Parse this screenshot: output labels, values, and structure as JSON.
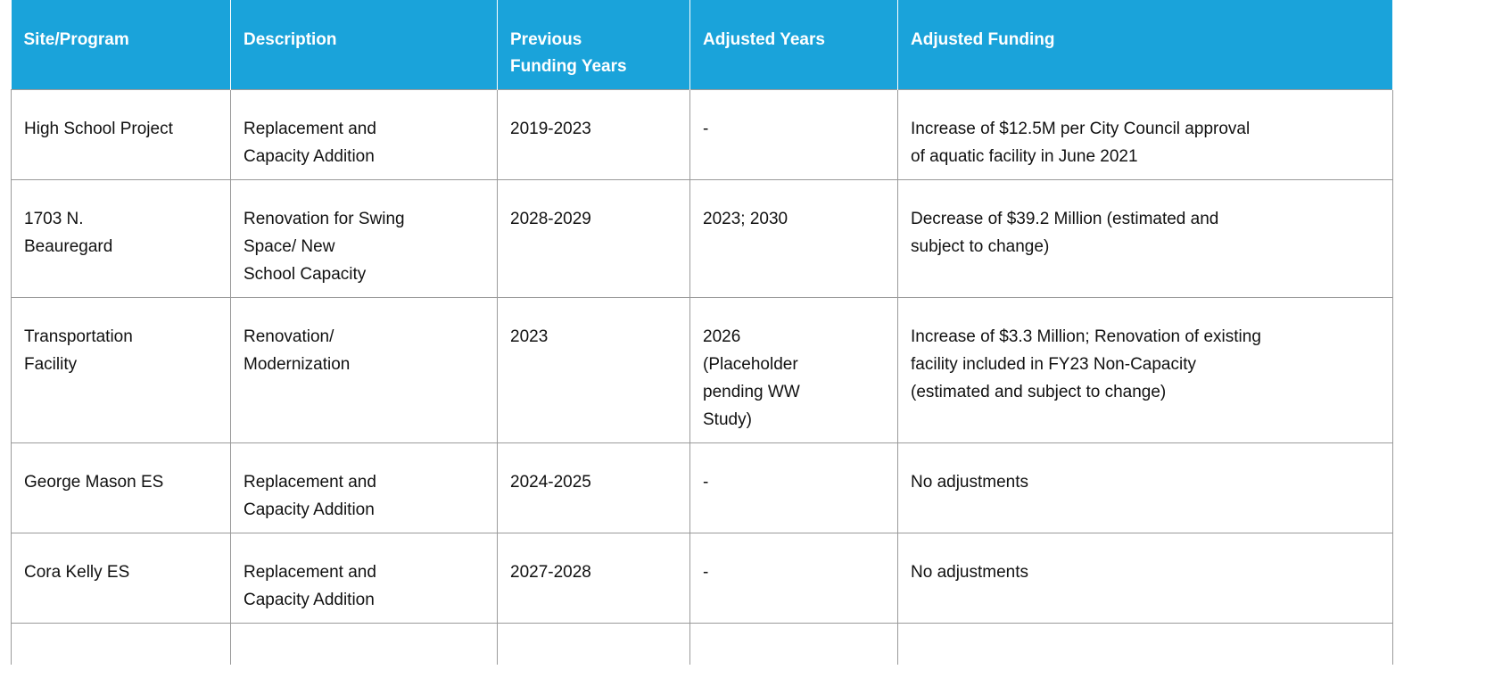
{
  "table": {
    "header": [
      "Site/Program",
      "Description",
      "Previous\nFunding Years",
      "Adjusted Years",
      "Adjusted Funding"
    ],
    "rows": [
      [
        "High School Project",
        "Replacement and\nCapacity Addition",
        "2019-2023",
        "-",
        "Increase of $12.5M per City Council approval\nof aquatic facility in June 2021"
      ],
      [
        "1703 N.\nBeauregard",
        "Renovation for Swing\nSpace/ New\nSchool Capacity",
        "2028-2029",
        "2023; 2030",
        "Decrease of $39.2 Million (estimated and\nsubject to change)"
      ],
      [
        "Transportation\nFacility",
        "Renovation/\nModernization",
        "2023",
        "2026\n(Placeholder\npending WW\nStudy)",
        "Increase of $3.3 Million; Renovation of existing\nfacility included in FY23 Non-Capacity\n(estimated and subject to change)"
      ],
      [
        "George Mason ES",
        "Replacement and\nCapacity Addition",
        "2024-2025",
        "-",
        "No adjustments"
      ],
      [
        "Cora Kelly ES",
        "Replacement and\nCapacity Addition",
        "2027-2028",
        "-",
        "No adjustments"
      ]
    ]
  }
}
